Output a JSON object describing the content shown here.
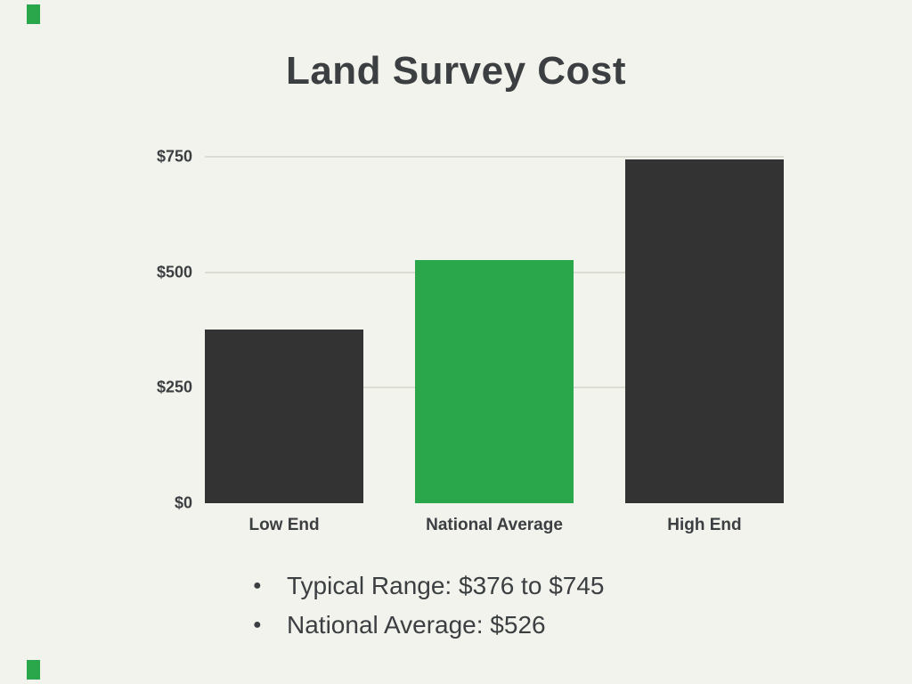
{
  "colors": {
    "background": "#f2f3ec",
    "green": "#2aa74b",
    "dark_bar": "#333333",
    "text": "#3c3f42",
    "gridline": "#dbddd3"
  },
  "chart_data": {
    "type": "bar",
    "title": "Land Survey Cost",
    "categories": [
      "Low End",
      "National Average",
      "High End"
    ],
    "values": [
      376,
      526,
      745
    ],
    "bar_colors": [
      "#333333",
      "#2aa74b",
      "#333333"
    ],
    "ylim": [
      0,
      750
    ],
    "yticks": [
      {
        "label": "$0",
        "value": 0
      },
      {
        "label": "$250",
        "value": 250
      },
      {
        "label": "$500",
        "value": 500
      },
      {
        "label": "$750",
        "value": 750
      }
    ],
    "xlabel": "",
    "ylabel": "",
    "grid": true,
    "legend": false
  },
  "notes": {
    "bullets": [
      "Typical Range: $376 to $745",
      "National Average: $526"
    ]
  }
}
